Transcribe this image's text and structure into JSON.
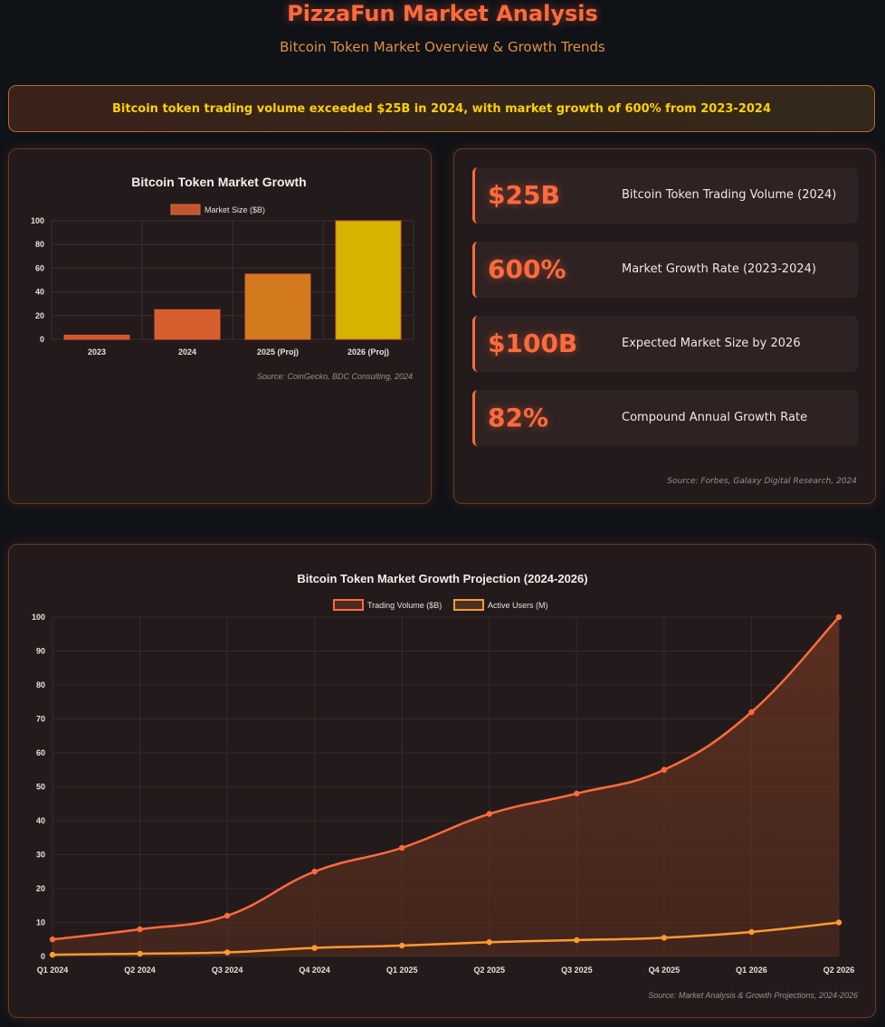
{
  "header": {
    "title": "PizzaFun Market Analysis",
    "subtitle": "Bitcoin Token Market Overview & Growth Trends"
  },
  "highlight": "Bitcoin token trading volume exceeded $25B in 2024, with market growth of 600% from 2023-2024",
  "stats": [
    {
      "value": "$25B",
      "label": "Bitcoin Token Trading Volume (2024)"
    },
    {
      "value": "600%",
      "label": "Market Growth Rate (2023-2024)"
    },
    {
      "value": "$100B",
      "label": "Expected Market Size by 2026"
    },
    {
      "value": "82%",
      "label": "Compound Annual Growth Rate"
    }
  ],
  "stats_source": "Source: Forbes, Galaxy Digital Research, 2024",
  "chart_data": [
    {
      "type": "bar",
      "title": "Bitcoin Token Market Growth",
      "categories": [
        "2023",
        "2024",
        "2025 (Proj)",
        "2026 (Proj)"
      ],
      "series": [
        {
          "name": "Market Size ($B)",
          "values": [
            3.5,
            25,
            55,
            100
          ]
        }
      ],
      "ylim": [
        0,
        100
      ],
      "yticks": [
        0,
        20,
        40,
        60,
        80,
        100
      ],
      "bar_colors": [
        "#d4582e",
        "#d65f30",
        "#d47a1e",
        "#d4b400"
      ],
      "legend": "top",
      "grid": true,
      "source": "Source: CoinGecko, BDC Consulting, 2024"
    },
    {
      "type": "line",
      "title": "Bitcoin Token Market Growth Projection (2024-2026)",
      "categories": [
        "Q1 2024",
        "Q2 2024",
        "Q3 2024",
        "Q4 2024",
        "Q1 2025",
        "Q2 2025",
        "Q3 2025",
        "Q4 2025",
        "Q1 2026",
        "Q2 2026"
      ],
      "series": [
        {
          "name": "Trading Volume ($B)",
          "values": [
            5,
            8,
            12,
            25,
            32,
            42,
            48,
            55,
            72,
            100
          ],
          "color": "#ff6a3d",
          "fill": true
        },
        {
          "name": "Active Users (M)",
          "values": [
            0.5,
            0.8,
            1.2,
            2.5,
            3.2,
            4.2,
            4.8,
            5.5,
            7.2,
            10
          ],
          "color": "#ff9a30",
          "fill": false
        }
      ],
      "ylim": [
        0,
        100
      ],
      "yticks": [
        0,
        10,
        20,
        30,
        40,
        50,
        60,
        70,
        80,
        90,
        100
      ],
      "legend": "top",
      "grid": true,
      "source": "Source: Market Analysis & Growth Projections, 2024-2026"
    }
  ]
}
